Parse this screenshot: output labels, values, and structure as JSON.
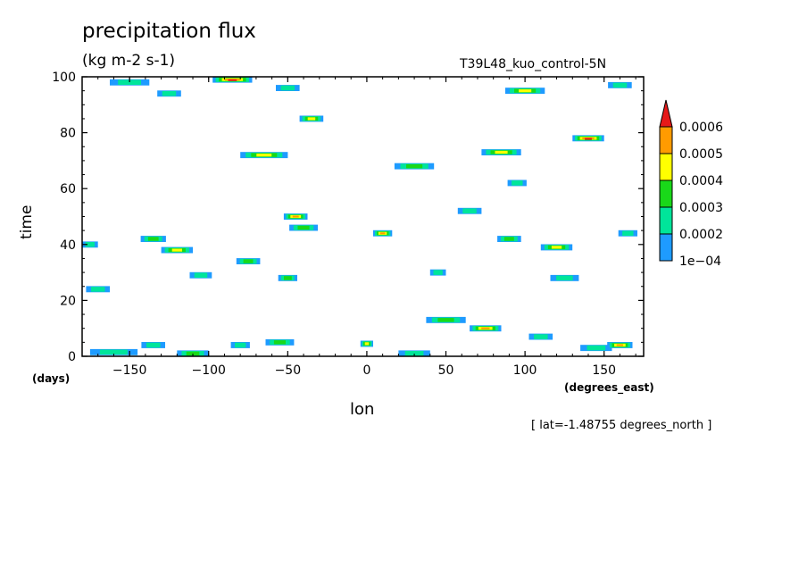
{
  "chart_data": {
    "type": "heatmap",
    "title": "precipitation flux",
    "units": "(kg m-2 s-1)",
    "run_name": "T39L48_kuo_control-5N",
    "xlabel": "lon",
    "ylabel": "time",
    "x_units": "(degrees_east)",
    "y_units": "(days)",
    "slice_note": "[ lat=-1.48755 degrees_north ]",
    "xlim": [
      -180,
      175
    ],
    "ylim": [
      0,
      100
    ],
    "x_ticks": [
      -150,
      -100,
      -50,
      0,
      50,
      100,
      150
    ],
    "x_tick_labels": [
      "−150",
      "−100",
      "−50",
      "0",
      "50",
      "100",
      "150"
    ],
    "y_ticks": [
      0,
      20,
      40,
      60,
      80,
      100
    ],
    "y_tick_labels": [
      "0",
      "20",
      "40",
      "60",
      "80",
      "100"
    ],
    "colorbar": {
      "levels": [
        0.0001,
        0.0002,
        0.0003,
        0.0004,
        0.0005,
        0.0006
      ],
      "level_labels": [
        "1e−04",
        "0.0002",
        "0.0003",
        "0.0004",
        "0.0005",
        "0.0006"
      ],
      "colors": [
        "#1e9bff",
        "#00e59a",
        "#19d819",
        "#ffff00",
        "#ff9b00",
        "#e61919"
      ]
    },
    "patches": [
      {
        "lon": -160,
        "day": 1.5,
        "w": 30,
        "level": 1
      },
      {
        "lon": -135,
        "day": 4,
        "w": 15,
        "level": 1
      },
      {
        "lon": -110,
        "day": 1,
        "w": 20,
        "level": 2
      },
      {
        "lon": -80,
        "day": 4,
        "w": 12,
        "level": 1
      },
      {
        "lon": -55,
        "day": 5,
        "w": 18,
        "level": 2
      },
      {
        "lon": 0,
        "day": 4.5,
        "w": 8,
        "level": 3
      },
      {
        "lon": 30,
        "day": 1,
        "w": 20,
        "level": 1
      },
      {
        "lon": 50,
        "day": 13,
        "w": 25,
        "level": 2
      },
      {
        "lon": 75,
        "day": 10,
        "w": 20,
        "level": 4
      },
      {
        "lon": 110,
        "day": 7,
        "w": 15,
        "level": 1
      },
      {
        "lon": 145,
        "day": 3,
        "w": 20,
        "level": 1
      },
      {
        "lon": 160,
        "day": 4,
        "w": 16,
        "level": 4
      },
      {
        "lon": -170,
        "day": 24,
        "w": 15,
        "level": 1
      },
      {
        "lon": -105,
        "day": 29,
        "w": 14,
        "level": 1
      },
      {
        "lon": -50,
        "day": 28,
        "w": 12,
        "level": 2
      },
      {
        "lon": 45,
        "day": 30,
        "w": 10,
        "level": 1
      },
      {
        "lon": 125,
        "day": 28,
        "w": 18,
        "level": 1
      },
      {
        "lon": -75,
        "day": 34,
        "w": 15,
        "level": 2
      },
      {
        "lon": -120,
        "day": 38,
        "w": 20,
        "level": 3
      },
      {
        "lon": -135,
        "day": 42,
        "w": 16,
        "level": 2
      },
      {
        "lon": -40,
        "day": 46,
        "w": 18,
        "level": 2
      },
      {
        "lon": -45,
        "day": 50,
        "w": 15,
        "level": 4
      },
      {
        "lon": 10,
        "day": 44,
        "w": 12,
        "level": 4
      },
      {
        "lon": 90,
        "day": 42,
        "w": 15,
        "level": 2
      },
      {
        "lon": 120,
        "day": 39,
        "w": 20,
        "level": 3
      },
      {
        "lon": 65,
        "day": 52,
        "w": 15,
        "level": 1
      },
      {
        "lon": 95,
        "day": 62,
        "w": 12,
        "level": 1
      },
      {
        "lon": -65,
        "day": 72,
        "w": 30,
        "level": 3
      },
      {
        "lon": 30,
        "day": 68,
        "w": 25,
        "level": 2
      },
      {
        "lon": 85,
        "day": 73,
        "w": 25,
        "level": 3
      },
      {
        "lon": 140,
        "day": 78,
        "w": 20,
        "level": 5
      },
      {
        "lon": -35,
        "day": 85,
        "w": 15,
        "level": 3
      },
      {
        "lon": -85,
        "day": 99,
        "w": 25,
        "level": 5
      },
      {
        "lon": -150,
        "day": 98,
        "w": 25,
        "level": 1
      },
      {
        "lon": -50,
        "day": 96,
        "w": 15,
        "level": 1
      },
      {
        "lon": 100,
        "day": 95,
        "w": 25,
        "level": 3
      },
      {
        "lon": 160,
        "day": 97,
        "w": 15,
        "level": 1
      },
      {
        "lon": -125,
        "day": 94,
        "w": 15,
        "level": 1
      },
      {
        "lon": -175,
        "day": 40,
        "w": 10,
        "level": 1
      },
      {
        "lon": 165,
        "day": 44,
        "w": 12,
        "level": 1
      }
    ]
  }
}
